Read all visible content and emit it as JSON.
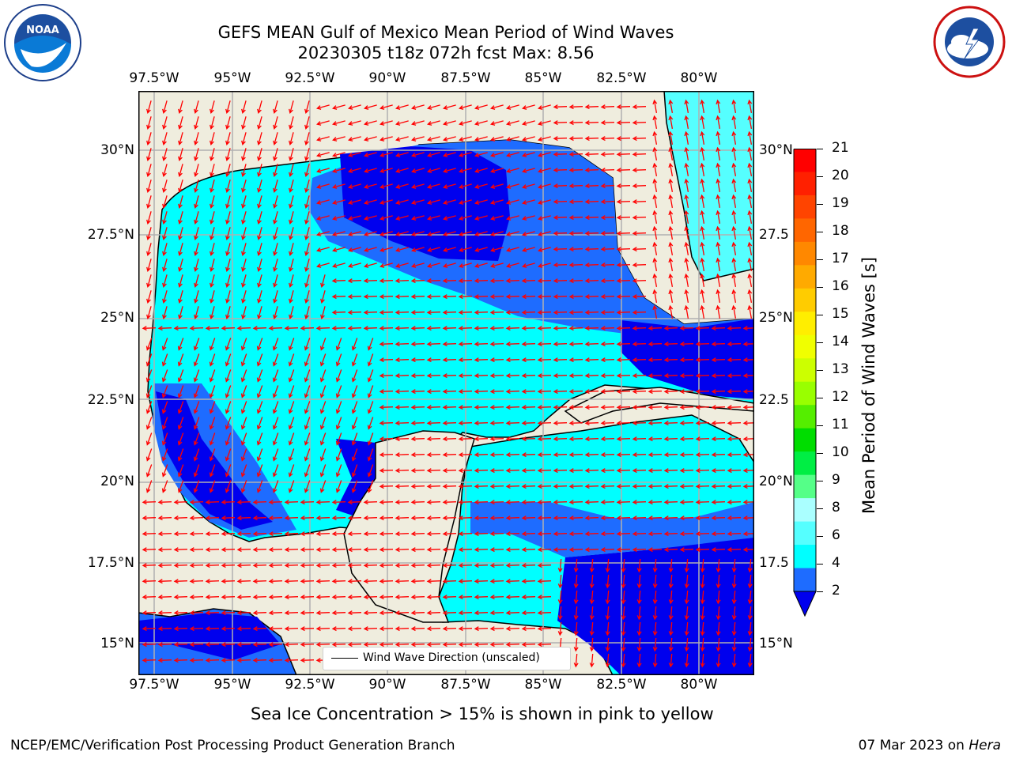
{
  "header": {
    "title_line1": "GEFS MEAN Gulf of Mexico Mean Period of Wind Waves",
    "title_line2": "20230305 t18z 072h fcst   Max: 8.56"
  },
  "logos": {
    "noaa": {
      "icon": "noaa-logo",
      "text": "NOAA",
      "ring_text": "NATIONAL OCEANIC AND ATMOSPHERIC ADMINISTRATION · U.S. DEPARTMENT OF COMMERCE"
    },
    "nws": {
      "icon": "nws-logo",
      "ring_text": "NATIONAL WEATHER SERVICE"
    }
  },
  "map": {
    "lon_ticks": [
      "97.5°W",
      "95°W",
      "92.5°W",
      "90°W",
      "87.5°W",
      "85°W",
      "82.5°W",
      "80°W"
    ],
    "lat_ticks_left": [
      "30°N",
      "27.5°N",
      "25°N",
      "22.5°N",
      "20°N",
      "17.5°N",
      "15°N"
    ],
    "lat_ticks_right": [
      "30°N",
      "27.5",
      "25°N",
      "22.5",
      "20°N",
      "17.5",
      "15°N"
    ],
    "lon_range": [
      -98,
      -78.3
    ],
    "lat_range": [
      14,
      31.7
    ],
    "gridlines": true,
    "legend": {
      "label": "Wind Wave Direction (unscaled)"
    },
    "colors": {
      "land": "#efedde",
      "period_2_4": "#1e6cff",
      "period_4_6": "#00ffff",
      "period_lt_2": "#0000ee",
      "period_6_8": "#55ffff",
      "arrows": "#ff0000",
      "grid": "#b0b0b0"
    }
  },
  "colorbar": {
    "title": "Mean Period of Wind Waves [s]",
    "labels": [
      "21",
      "20",
      "19",
      "18",
      "17",
      "16",
      "15",
      "14",
      "13",
      "12",
      "11",
      "10",
      "9",
      "8",
      "6",
      "4",
      "2"
    ],
    "colors_top_to_bottom": [
      "#ff0000",
      "#ff2000",
      "#ff4400",
      "#ff6600",
      "#ff8800",
      "#ffaa00",
      "#ffcc00",
      "#ffee00",
      "#f0ff00",
      "#ccff00",
      "#99ff00",
      "#55ee00",
      "#00dd00",
      "#00ee44",
      "#55ff88",
      "#aaffff",
      "#55ffff",
      "#00ffff",
      "#1e6cff",
      "#0000ee"
    ]
  },
  "note": "Sea Ice Concentration > 15% is shown in pink to yellow",
  "footer": {
    "left": "NCEP/EMC/Verification Post Processing Product Generation Branch",
    "right_date": "07 Mar 2023 on ",
    "right_machine": "Hera"
  }
}
